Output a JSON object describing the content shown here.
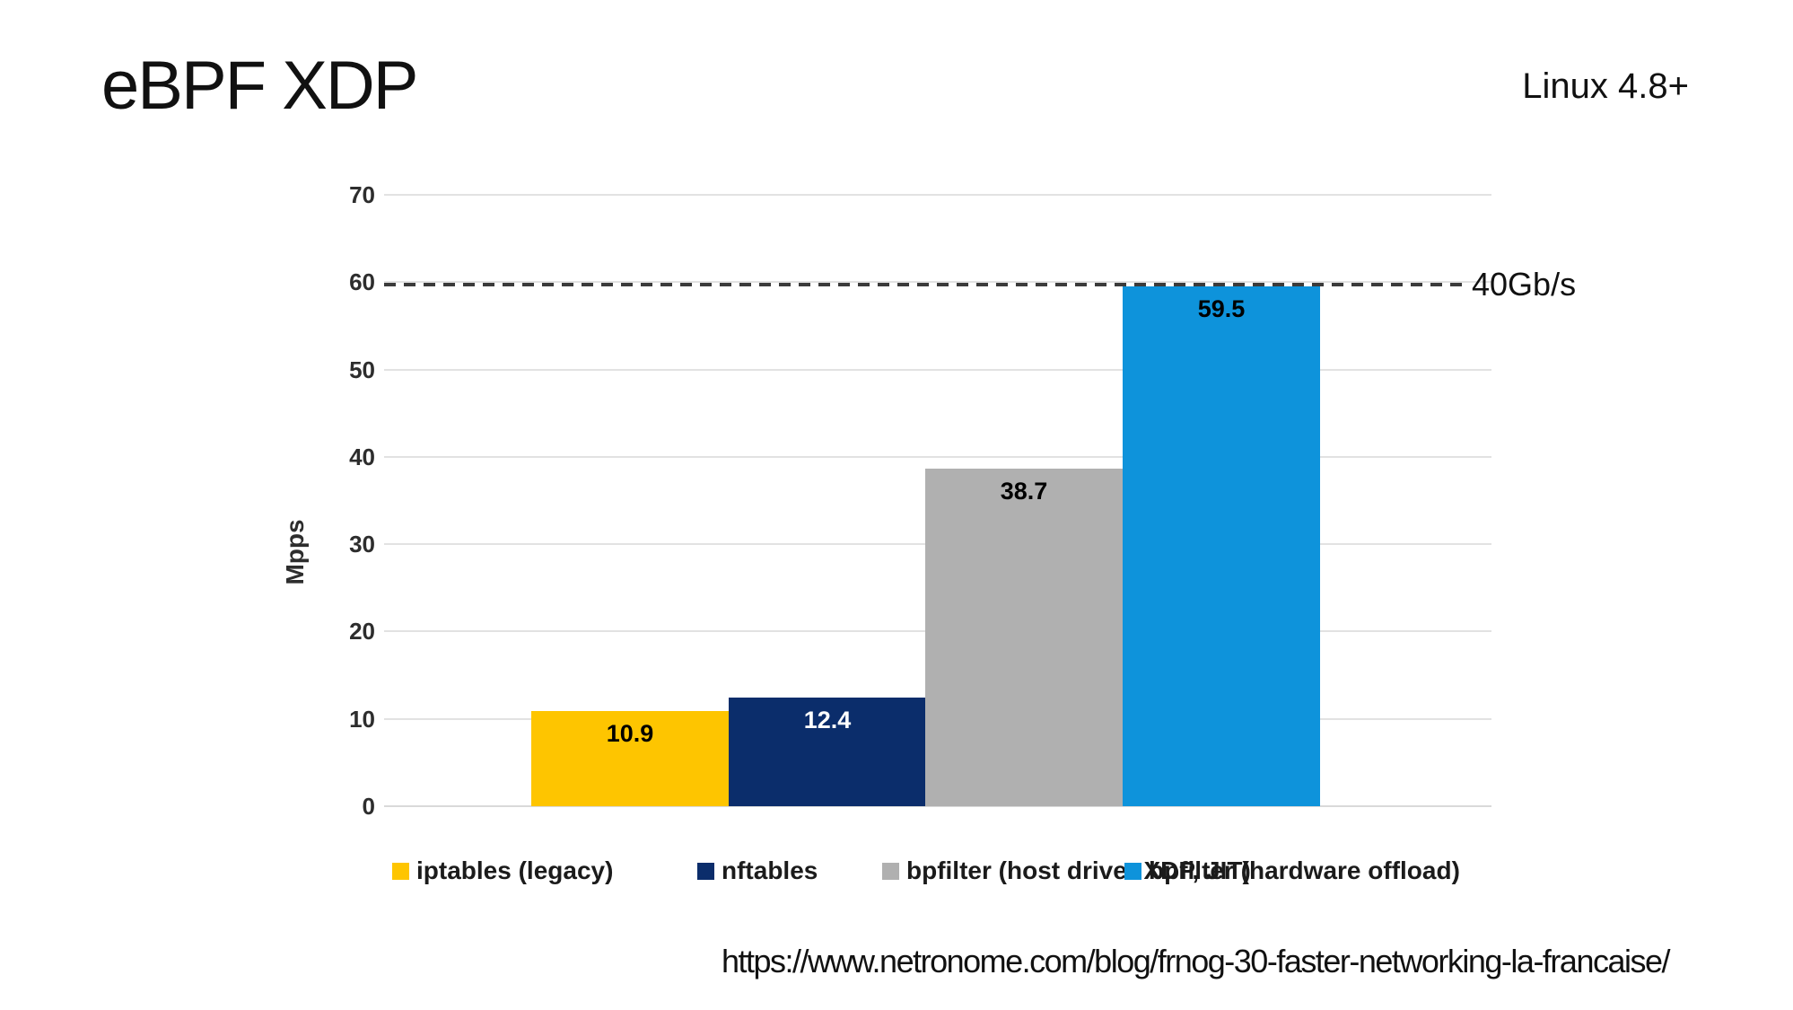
{
  "slide": {
    "title": "eBPF XDP",
    "corner_note": "Linux 4.8+",
    "source_url": "https://www.netronome.com/blog/frnog-30-faster-networking-la-francaise/"
  },
  "chart_data": {
    "type": "bar",
    "title": "",
    "xlabel": "",
    "ylabel": "Mpps",
    "ylim": [
      0,
      70
    ],
    "yticks": [
      0,
      10,
      20,
      30,
      40,
      50,
      60,
      70
    ],
    "grid": true,
    "legend_position": "bottom",
    "series": [
      {
        "name": "iptables (legacy)",
        "value": 10.9,
        "color": "#FEC500",
        "label_color": "#000000"
      },
      {
        "name": "nftables",
        "value": 12.4,
        "color": "#0B2D6B",
        "label_color": "#FFFFFF"
      },
      {
        "name": "bpfilter (host driver XDP, JIT)",
        "value": 38.7,
        "color": "#B0B0B0",
        "label_color": "#000000"
      },
      {
        "name": "bpfilter (hardware offload)",
        "value": 59.5,
        "color": "#0E93DB",
        "label_color": "#000000"
      }
    ],
    "threshold_line": {
      "label": "40Gb/s",
      "value_mpps": 59.7,
      "style": "dashed",
      "color": "#3B3B3B"
    }
  }
}
